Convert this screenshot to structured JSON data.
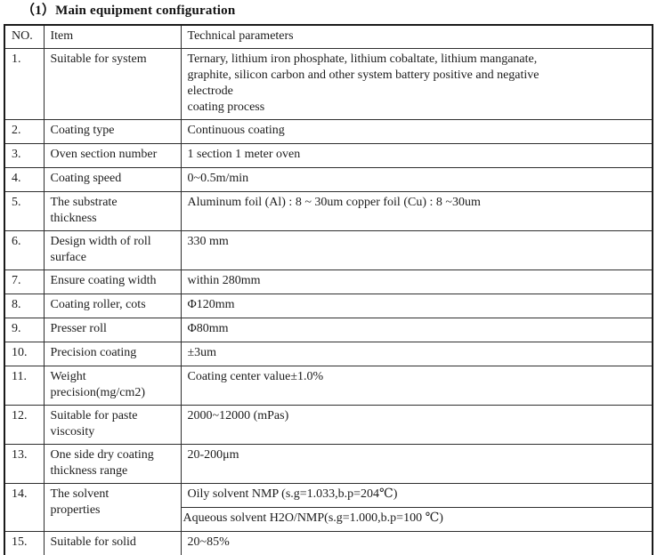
{
  "title": "（1）Main equipment configuration",
  "table": {
    "headers": {
      "no": "NO.",
      "item": "Item",
      "params": "Technical parameters"
    },
    "rows": [
      {
        "no": "1.",
        "item": "Suitable for system",
        "param": "Ternary, lithium iron phosphate, lithium cobaltate, lithium manganate,\ngraphite, silicon carbon and other system battery positive and negative\nelectrode\ncoating process"
      },
      {
        "no": "2.",
        "item": "Coating type",
        "param": "Continuous coating"
      },
      {
        "no": "3.",
        "item": "Oven section number",
        "param": "1 section 1 meter oven"
      },
      {
        "no": "4.",
        "item": "Coating speed",
        "param": "0~0.5m/min"
      },
      {
        "no": "5.",
        "item": "The substrate\nthickness",
        "param": "Aluminum foil (Al) : 8 ~ 30um copper foil (Cu) : 8 ~30um"
      },
      {
        "no": "6.",
        "item": "Design width of roll\nsurface",
        "param": "330 mm"
      },
      {
        "no": "7.",
        "item": "Ensure coating width",
        "param": "within 280mm"
      },
      {
        "no": "8.",
        "item": "Coating roller, cots",
        "param": "Φ120mm"
      },
      {
        "no": "9.",
        "item": "Presser roll",
        "param": "Φ80mm"
      },
      {
        "no": "10.",
        "item": "Precision coating",
        "param": "±3um"
      },
      {
        "no": "11.",
        "item": "Weight\nprecision(mg/cm2)",
        "param": "Coating center value±1.0%"
      },
      {
        "no": "12.",
        "item": "Suitable for paste\nviscosity",
        "param": "2000~12000 (mPas)"
      },
      {
        "no": "13.",
        "item": "One side dry coating\nthickness range",
        "param": "20-200μm"
      },
      {
        "no": "14.",
        "item": "The solvent\nproperties",
        "params": [
          "Oily solvent NMP (s.g=1.033,b.p=204℃)",
          "Aqueous solvent H2O/NMP(s.g=1.000,b.p=100 ℃)"
        ]
      },
      {
        "no": "15.",
        "item": "Suitable for solid",
        "param": "20~85%"
      }
    ]
  }
}
